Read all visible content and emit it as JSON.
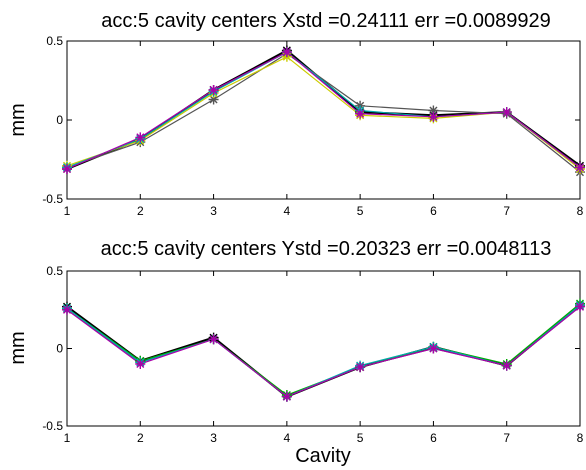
{
  "chart_data": [
    {
      "type": "line",
      "title": "acc:5 cavity centers Xstd =0.24111   err =0.0089929",
      "xlabel": "",
      "ylabel": "mm",
      "xlim": [
        1,
        8
      ],
      "ylim": [
        -0.5,
        0.5
      ],
      "xticks": [
        1,
        2,
        3,
        4,
        5,
        6,
        7,
        8
      ],
      "yticks": [
        -0.5,
        0,
        0.5
      ],
      "ytick_labels": [
        "-0.5",
        "0",
        "0.5"
      ],
      "grid": false,
      "x": [
        1,
        2,
        3,
        4,
        5,
        6,
        7,
        8
      ],
      "series": [
        {
          "color": "#000000",
          "marker": "star",
          "values": [
            -0.31,
            -0.12,
            0.19,
            0.44,
            0.05,
            0.03,
            0.05,
            -0.29
          ]
        },
        {
          "color": "#555555",
          "marker": "star",
          "values": [
            -0.3,
            -0.14,
            0.13,
            0.42,
            0.09,
            0.06,
            0.04,
            -0.33
          ]
        },
        {
          "color": "#cccc00",
          "marker": "star",
          "values": [
            -0.29,
            -0.13,
            0.17,
            0.4,
            0.03,
            0.01,
            0.05,
            -0.31
          ]
        },
        {
          "color": "#00aaaa",
          "marker": "star",
          "values": [
            -0.3,
            -0.12,
            0.18,
            0.43,
            0.06,
            0.02,
            0.05,
            -0.3
          ]
        },
        {
          "color": "#aa00aa",
          "marker": "star",
          "values": [
            -0.31,
            -0.11,
            0.19,
            0.43,
            0.04,
            0.02,
            0.05,
            -0.3
          ]
        }
      ]
    },
    {
      "type": "line",
      "title": "acc:5 cavity centers Ystd =0.20323   err =0.0048113",
      "xlabel": "Cavity",
      "ylabel": "mm",
      "xlim": [
        1,
        8
      ],
      "ylim": [
        -0.5,
        0.5
      ],
      "xticks": [
        1,
        2,
        3,
        4,
        5,
        6,
        7,
        8
      ],
      "yticks": [
        -0.5,
        0,
        0.5
      ],
      "ytick_labels": [
        "-0.5",
        "0",
        "0.5"
      ],
      "grid": false,
      "x": [
        1,
        2,
        3,
        4,
        5,
        6,
        7,
        8
      ],
      "series": [
        {
          "color": "#000000",
          "marker": "star",
          "values": [
            0.27,
            -0.08,
            0.07,
            -0.31,
            -0.12,
            0.01,
            -0.11,
            0.28
          ]
        },
        {
          "color": "#555555",
          "marker": "star",
          "values": [
            0.25,
            -0.09,
            0.06,
            -0.31,
            -0.12,
            0.0,
            -0.11,
            0.27
          ]
        },
        {
          "color": "#00aa00",
          "marker": "star",
          "values": [
            0.26,
            -0.08,
            0.06,
            -0.3,
            -0.12,
            0.01,
            -0.1,
            0.29
          ]
        },
        {
          "color": "#00aaaa",
          "marker": "star",
          "values": [
            0.26,
            -0.09,
            0.06,
            -0.31,
            -0.11,
            0.01,
            -0.11,
            0.28
          ]
        },
        {
          "color": "#aa00aa",
          "marker": "star",
          "values": [
            0.25,
            -0.1,
            0.06,
            -0.31,
            -0.12,
            0.0,
            -0.11,
            0.27
          ]
        }
      ]
    }
  ]
}
